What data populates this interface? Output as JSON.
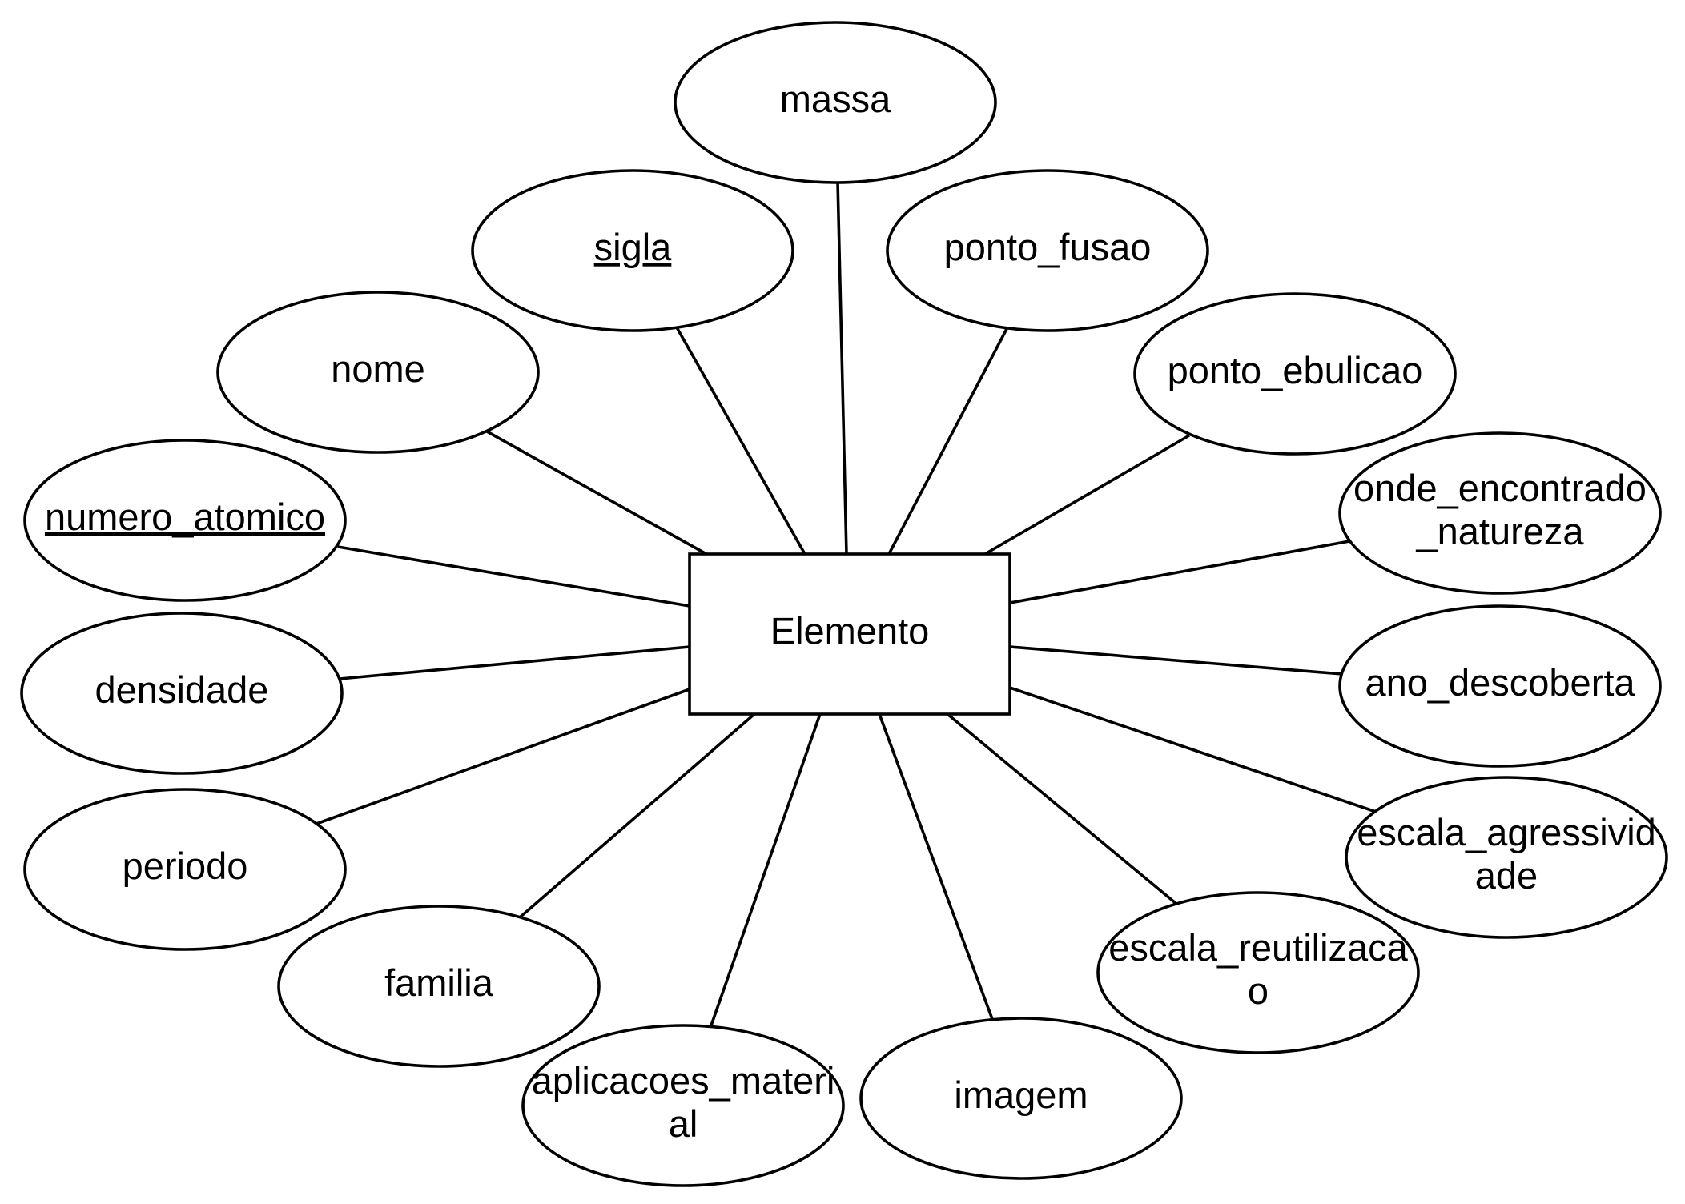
{
  "entity": {
    "label": "Elemento"
  },
  "attributes": [
    {
      "id": "massa",
      "lines": [
        "massa"
      ],
      "key": false
    },
    {
      "id": "sigla",
      "lines": [
        "sigla"
      ],
      "key": true
    },
    {
      "id": "ponto-fusao",
      "lines": [
        "ponto_fusao"
      ],
      "key": false
    },
    {
      "id": "nome",
      "lines": [
        "nome"
      ],
      "key": false
    },
    {
      "id": "ponto-ebulicao",
      "lines": [
        "ponto_ebulicao"
      ],
      "key": false
    },
    {
      "id": "numero-atomico",
      "lines": [
        "numero_atomico"
      ],
      "key": true
    },
    {
      "id": "onde-encontrado-natureza",
      "lines": [
        "onde_encontrado",
        "_natureza"
      ],
      "key": false
    },
    {
      "id": "densidade",
      "lines": [
        "densidade"
      ],
      "key": false
    },
    {
      "id": "ano-descoberta",
      "lines": [
        "ano_descoberta"
      ],
      "key": false
    },
    {
      "id": "periodo",
      "lines": [
        "periodo"
      ],
      "key": false
    },
    {
      "id": "escala-agressividade",
      "lines": [
        "escala_agressivid",
        "ade"
      ],
      "key": false
    },
    {
      "id": "familia",
      "lines": [
        "familia"
      ],
      "key": false
    },
    {
      "id": "escala-reutilizacao",
      "lines": [
        "escala_reutilizaca",
        "o"
      ],
      "key": false
    },
    {
      "id": "aplicacoes-material",
      "lines": [
        "aplicacoes_materi",
        "al"
      ],
      "key": false
    },
    {
      "id": "imagem",
      "lines": [
        "imagem"
      ],
      "key": false
    }
  ]
}
